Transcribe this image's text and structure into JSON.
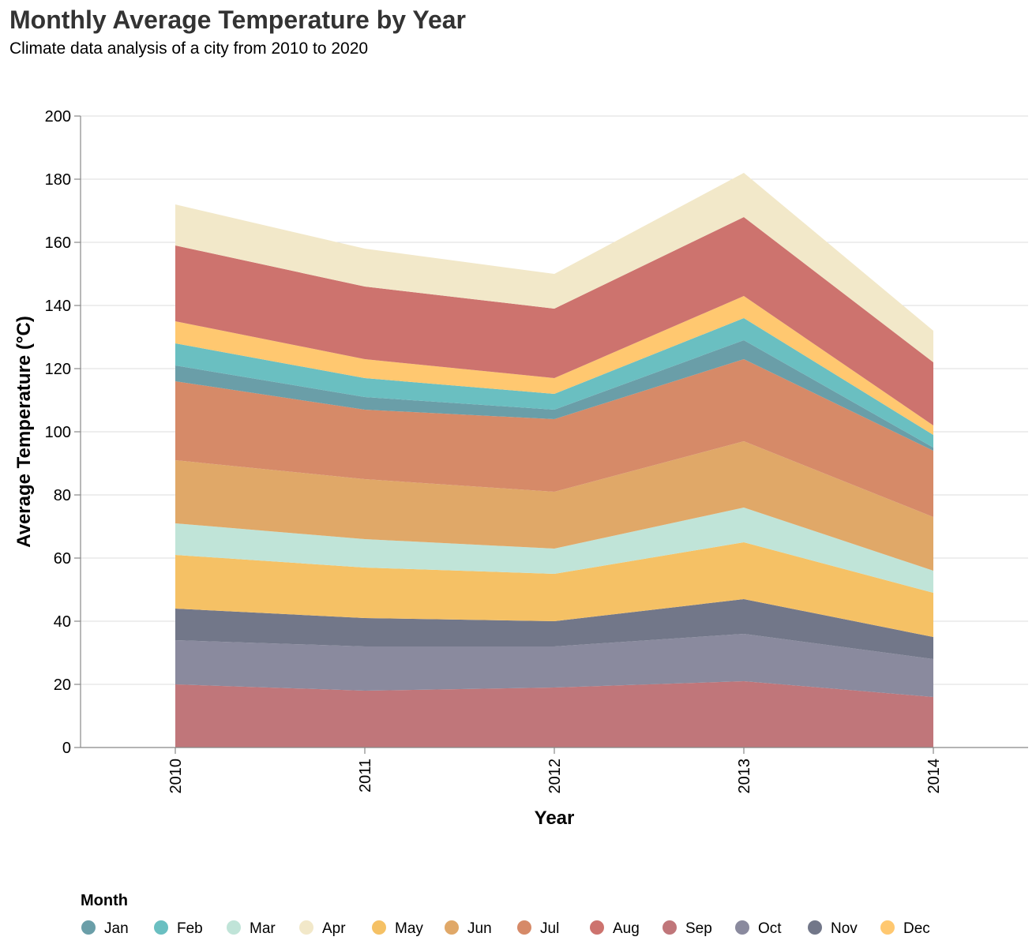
{
  "chart_data": {
    "type": "area",
    "stacked": true,
    "title": "Monthly Average Temperature by Year",
    "subtitle": "Climate data analysis of a city from 2010 to 2020",
    "xlabel": "Year",
    "ylabel": "Average Temperature (°C)",
    "x": [
      "2010",
      "2011",
      "2012",
      "2013",
      "2014"
    ],
    "ylim": [
      0,
      200
    ],
    "yticks": [
      0,
      20,
      40,
      60,
      80,
      100,
      120,
      140,
      160,
      180,
      200
    ],
    "grid": true,
    "legend_title": "Month",
    "legend_position": "bottom",
    "series": [
      {
        "name": "Sep",
        "color": "#c0767a",
        "values": [
          20,
          18,
          19,
          21,
          16
        ]
      },
      {
        "name": "Oct",
        "color": "#8a8a9e",
        "values": [
          14,
          14,
          13,
          15,
          12
        ]
      },
      {
        "name": "Nov",
        "color": "#727789",
        "values": [
          10,
          9,
          8,
          11,
          7
        ]
      },
      {
        "name": "May",
        "color": "#f5c165",
        "values": [
          17,
          16,
          15,
          18,
          14
        ]
      },
      {
        "name": "Mar",
        "color": "#c0e4d8",
        "values": [
          10,
          9,
          8,
          11,
          7
        ]
      },
      {
        "name": "Jun",
        "color": "#e0a868",
        "values": [
          20,
          19,
          18,
          21,
          17
        ]
      },
      {
        "name": "Jul",
        "color": "#d68a68",
        "values": [
          25,
          22,
          23,
          26,
          21
        ]
      },
      {
        "name": "Jan",
        "color": "#6a9ea8",
        "values": [
          5,
          4,
          3,
          6,
          1
        ]
      },
      {
        "name": "Feb",
        "color": "#6abfc1",
        "values": [
          7,
          6,
          5,
          7,
          4
        ]
      },
      {
        "name": "Dec",
        "color": "#ffc870",
        "values": [
          7,
          6,
          5,
          7,
          3
        ]
      },
      {
        "name": "Aug",
        "color": "#cd736e",
        "values": [
          24,
          23,
          22,
          25,
          20
        ]
      },
      {
        "name": "Apr",
        "color": "#f2e8c9",
        "values": [
          13,
          12,
          11,
          14,
          10
        ]
      }
    ],
    "legend_order": [
      "Jan",
      "Feb",
      "Mar",
      "Apr",
      "May",
      "Jun",
      "Jul",
      "Aug",
      "Sep",
      "Oct",
      "Nov",
      "Dec"
    ]
  }
}
